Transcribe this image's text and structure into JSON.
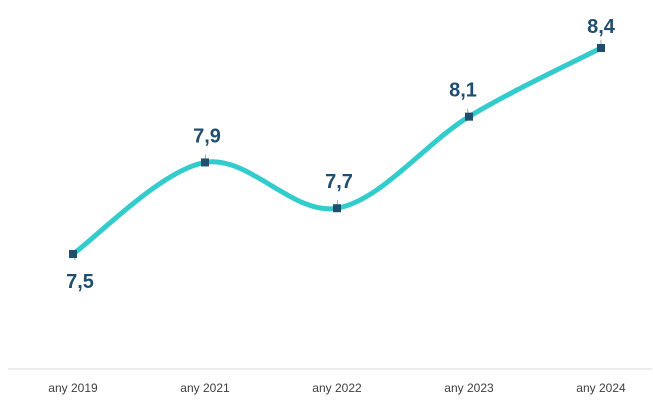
{
  "chart_data": {
    "type": "line",
    "categories": [
      "any 2019",
      "any 2021",
      "any 2022",
      "any 2023",
      "any 2024"
    ],
    "series": [
      {
        "values": [
          7.5,
          7.9,
          7.7,
          8.1,
          8.4
        ]
      }
    ],
    "data_labels": [
      "7,5",
      "7,9",
      "7,7",
      "8,1",
      "8,4"
    ],
    "title": "",
    "xlabel": "",
    "ylabel": "",
    "ylim": [
      7.0,
      8.6
    ],
    "grid": false,
    "y_axis_visible": false,
    "smooth": true,
    "colors": {
      "line": "#33CCCC",
      "marker": "#1F4E6E",
      "label": "#1F4E6E",
      "tick": "#404040",
      "axis": "#D9D9D9"
    }
  }
}
